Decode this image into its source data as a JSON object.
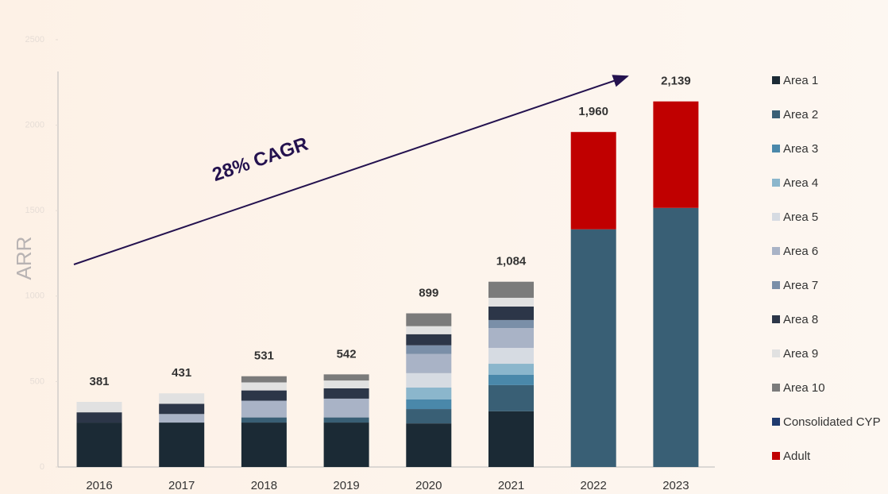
{
  "chart_data": {
    "type": "stacked_bar",
    "y_label": "ARR",
    "annotation": "28% CAGR",
    "categories": [
      "2016",
      "2017",
      "2018",
      "2019",
      "2020",
      "2021",
      "2022",
      "2023"
    ],
    "ylim": [
      0,
      2500
    ],
    "yticks": [
      0,
      500,
      1000,
      1500,
      2000,
      2500
    ],
    "legend": "right",
    "series": [
      {
        "name": "Area 1",
        "color": "#1b2a35",
        "values": [
          260,
          260,
          260,
          260,
          255,
          326,
          0,
          0
        ]
      },
      {
        "name": "Area 2",
        "color": "#395f75",
        "values": [
          0,
          0,
          30,
          30,
          84,
          153,
          1391,
          1516
        ]
      },
      {
        "name": "Area 3",
        "color": "#4a88aa",
        "values": [
          0,
          0,
          0,
          0,
          56,
          60,
          0,
          0
        ]
      },
      {
        "name": "Area 4",
        "color": "#8bb6cc",
        "values": [
          0,
          0,
          0,
          0,
          70,
          65,
          0,
          0
        ]
      },
      {
        "name": "Area 5",
        "color": "#d6dbe2",
        "values": [
          0,
          0,
          0,
          0,
          84,
          93,
          0,
          0
        ]
      },
      {
        "name": "Area 6",
        "color": "#a9b3c6",
        "values": [
          0,
          50,
          98,
          110,
          112,
          116,
          0,
          0
        ]
      },
      {
        "name": "Area 7",
        "color": "#7a8fa8",
        "values": [
          0,
          0,
          0,
          0,
          51,
          47,
          0,
          0
        ]
      },
      {
        "name": "Area 8",
        "color": "#2c3648",
        "values": [
          60,
          60,
          60,
          60,
          65,
          79,
          0,
          0
        ]
      },
      {
        "name": "Area 9",
        "color": "#e1e1e1",
        "values": [
          61,
          61,
          47,
          46,
          47,
          51,
          0,
          0
        ]
      },
      {
        "name": "Area 10",
        "color": "#7b7b7b",
        "values": [
          0,
          0,
          36,
          36,
          75,
          94,
          0,
          0
        ]
      },
      {
        "name": "Consolidated CYP",
        "color": "#1f3a6e",
        "values": [
          0,
          0,
          0,
          0,
          0,
          0,
          0,
          0
        ]
      },
      {
        "name": "Adult",
        "color": "#c00000",
        "values": [
          0,
          0,
          0,
          0,
          0,
          0,
          569,
          623
        ]
      }
    ],
    "totals": [
      381,
      431,
      531,
      542,
      899,
      1084,
      1960,
      2139
    ],
    "total_labels": [
      "381",
      "431",
      "531",
      "542",
      "899",
      "1,084",
      "1,960",
      "2,139"
    ]
  }
}
